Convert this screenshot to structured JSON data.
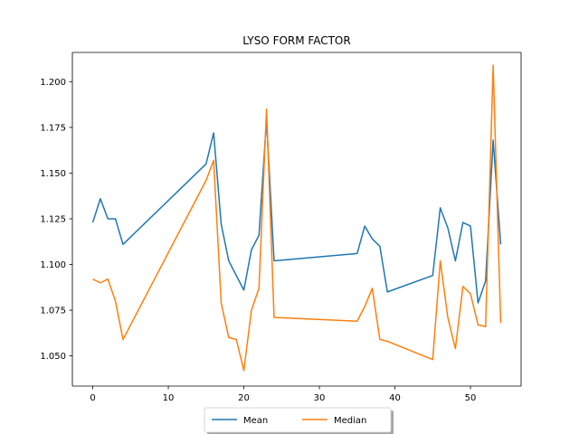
{
  "chart_data": {
    "type": "line",
    "title": "LYSO FORM FACTOR",
    "xlabel": "",
    "ylabel": "",
    "xlim": [
      -2.7,
      56.7
    ],
    "ylim": [
      1.0335,
      1.216
    ],
    "xticks": [
      0,
      10,
      20,
      30,
      40,
      50
    ],
    "yticks": [
      1.05,
      1.075,
      1.1,
      1.125,
      1.15,
      1.175,
      1.2
    ],
    "grid": false,
    "legend_position": "bottom-center",
    "series": [
      {
        "name": "Mean",
        "color": "#1f77b4",
        "x": [
          0,
          1,
          2,
          3,
          4,
          15,
          16,
          17,
          18,
          20,
          21,
          22,
          23,
          24,
          35,
          36,
          37,
          38,
          39,
          45,
          46,
          47,
          48,
          49,
          50,
          51,
          52,
          53,
          54
        ],
        "y": [
          1.123,
          1.136,
          1.125,
          1.125,
          1.111,
          1.155,
          1.172,
          1.122,
          1.102,
          1.086,
          1.108,
          1.116,
          1.179,
          1.102,
          1.106,
          1.121,
          1.114,
          1.11,
          1.085,
          1.094,
          1.131,
          1.12,
          1.102,
          1.123,
          1.121,
          1.079,
          1.091,
          1.168,
          1.111
        ]
      },
      {
        "name": "Median",
        "color": "#ff7f0e",
        "x": [
          0,
          1,
          2,
          3,
          4,
          15,
          16,
          17,
          18,
          19,
          20,
          21,
          22,
          23,
          24,
          35,
          36,
          37,
          38,
          39,
          45,
          46,
          47,
          48,
          49,
          50,
          51,
          52,
          53,
          54
        ],
        "y": [
          1.092,
          1.09,
          1.092,
          1.08,
          1.059,
          1.146,
          1.157,
          1.079,
          1.06,
          1.059,
          1.042,
          1.075,
          1.087,
          1.185,
          1.071,
          1.069,
          1.077,
          1.087,
          1.059,
          1.058,
          1.048,
          1.102,
          1.071,
          1.054,
          1.088,
          1.084,
          1.067,
          1.066,
          1.209,
          1.068
        ]
      }
    ]
  }
}
